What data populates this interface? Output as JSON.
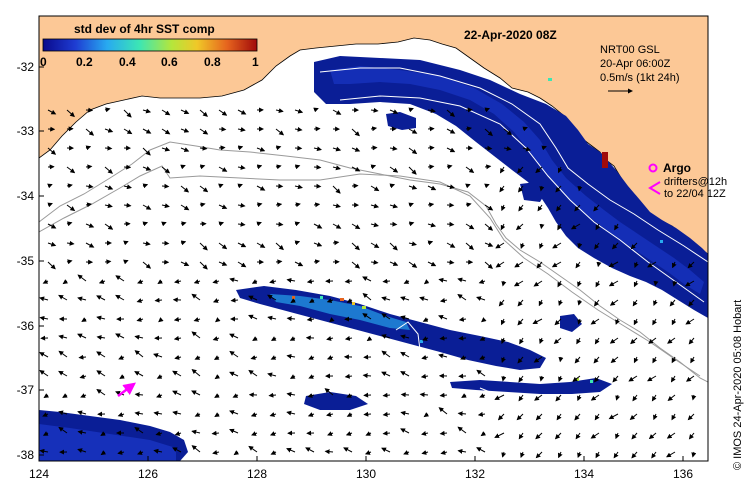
{
  "title": "22-Apr-2020 08Z",
  "colorbar": {
    "label": "std dev of 4hr SST comp",
    "ticks": [
      "0",
      "0.2",
      "0.4",
      "0.6",
      "0.8",
      "1"
    ],
    "stops": [
      "#0a0a8c",
      "#1e3cd2",
      "#28aaf0",
      "#3ce6b4",
      "#b4e63c",
      "#f0c828",
      "#e6641e",
      "#a00a0a"
    ]
  },
  "current_legend": {
    "line1": "NRT00 GSL",
    "line2": "20-Apr 06:00Z",
    "line3": "0.5m/s (1kt 24h)"
  },
  "argo_legend": {
    "label": "Argo",
    "drifters_line1": "drifters@12h",
    "drifters_line2": "to 22/04 12Z",
    "argo_color": "#ff00ff"
  },
  "credit": "© IMOS 24-Apr-2020 05:08 Hobart",
  "axes": {
    "x_ticks": [
      "124",
      "126",
      "128",
      "130",
      "132",
      "134",
      "136"
    ],
    "y_ticks": [
      "-32",
      "-33",
      "-34",
      "-35",
      "-36",
      "-37",
      "-38"
    ]
  },
  "colors": {
    "land": "#fcc896",
    "ocean": "#ffffff",
    "sst_low": "#0a1e96"
  }
}
